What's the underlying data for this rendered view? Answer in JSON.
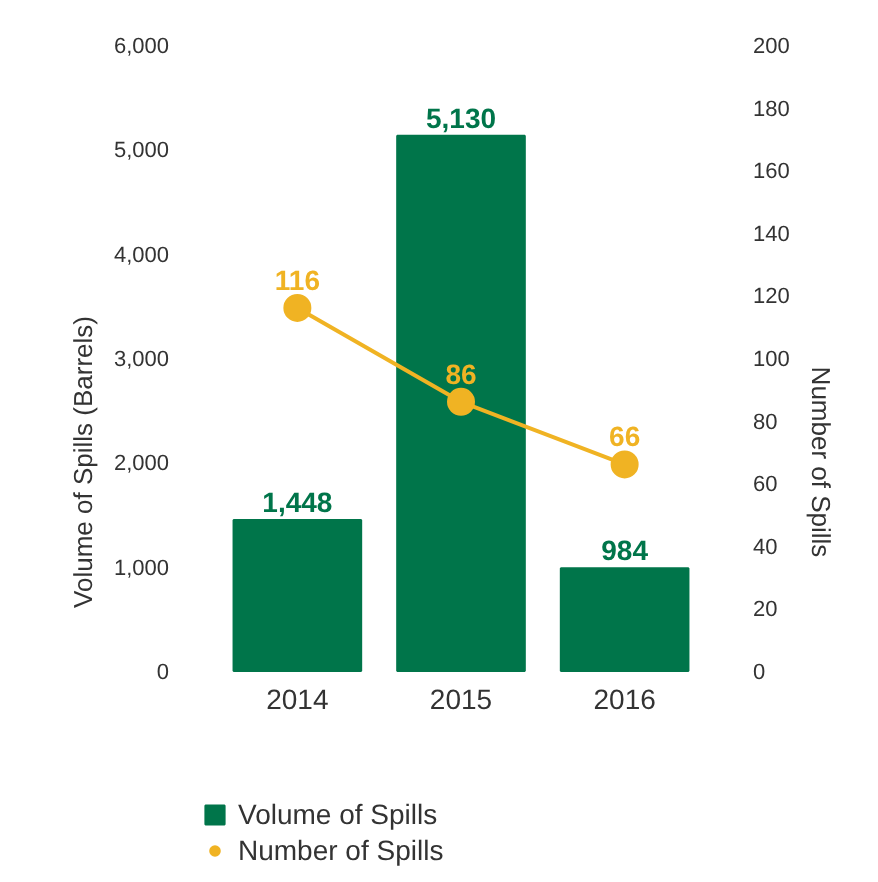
{
  "chart_data": {
    "type": "bar",
    "categories": [
      "2014",
      "2015",
      "2016"
    ],
    "ylabel": "Volume of Spills (Barrels)",
    "y2label": "Number of Spills",
    "series": [
      {
        "name": "Volume of Spills",
        "color": "#00754a",
        "values": [
          1448,
          5130,
          984
        ],
        "value_labels": [
          "1,448",
          "5,130",
          "984"
        ]
      },
      {
        "name": "Number of Spills",
        "type": "line",
        "axis": "y2",
        "color": "#f0b323",
        "marker": "circle",
        "values": [
          116,
          86,
          66
        ],
        "value_labels": [
          "116",
          "86",
          "66"
        ]
      }
    ],
    "ylim": [
      0,
      6000
    ],
    "yticks": [
      0,
      {
        "value": 1000,
        "label": "1,000"
      },
      {
        "value": 2000,
        "label": "2,000"
      },
      {
        "value": 3000,
        "label": "3,000"
      },
      {
        "value": 4000,
        "label": "4,000"
      },
      {
        "value": 5000,
        "label": "5,000"
      },
      {
        "value": 6000,
        "label": "6,000"
      }
    ],
    "y2lim": [
      0,
      200
    ],
    "y2ticks": [
      0,
      20,
      40,
      60,
      80,
      100,
      120,
      140,
      160,
      180,
      200
    ],
    "grid": false,
    "legend": "bottom left"
  }
}
